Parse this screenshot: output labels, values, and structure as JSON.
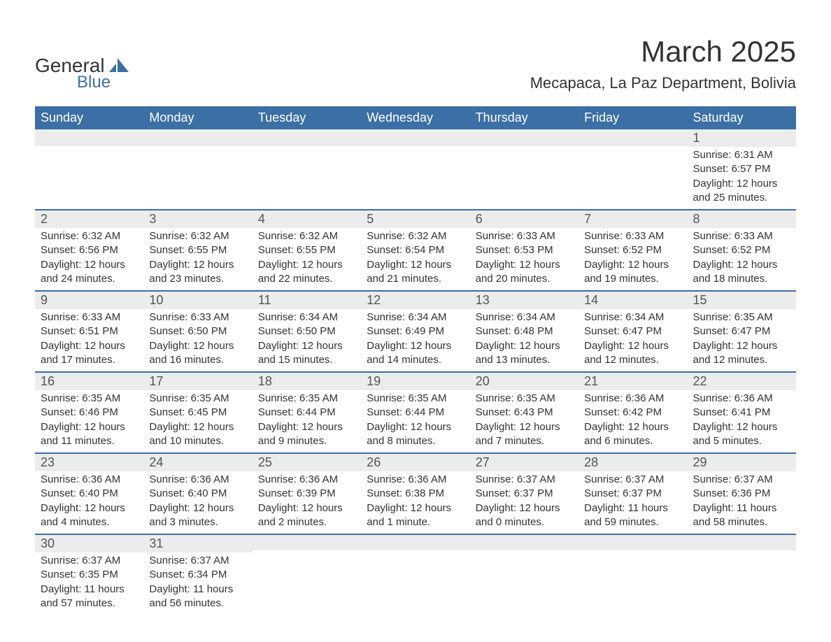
{
  "brand": {
    "line1": "General",
    "line2": "Blue"
  },
  "title": "March 2025",
  "location": "Mecapaca, La Paz Department, Bolivia",
  "colors": {
    "header_bg": "#3b6fa5",
    "header_fg": "#ffffff",
    "daynum_bg": "#ececec",
    "row_border": "#3b6fa5",
    "text": "#333333",
    "background": "#ffffff"
  },
  "fonts": {
    "title_pt": 42,
    "location_pt": 22,
    "dayheader_pt": 18,
    "body_pt": 15
  },
  "calendar": {
    "type": "calendar-table",
    "start_weekday": "Sunday",
    "day_headers": [
      "Sunday",
      "Monday",
      "Tuesday",
      "Wednesday",
      "Thursday",
      "Friday",
      "Saturday"
    ],
    "weeks": [
      [
        null,
        null,
        null,
        null,
        null,
        null,
        {
          "n": "1",
          "sunrise": "Sunrise: 6:31 AM",
          "sunset": "Sunset: 6:57 PM",
          "daylight": "Daylight: 12 hours and 25 minutes."
        }
      ],
      [
        {
          "n": "2",
          "sunrise": "Sunrise: 6:32 AM",
          "sunset": "Sunset: 6:56 PM",
          "daylight": "Daylight: 12 hours and 24 minutes."
        },
        {
          "n": "3",
          "sunrise": "Sunrise: 6:32 AM",
          "sunset": "Sunset: 6:55 PM",
          "daylight": "Daylight: 12 hours and 23 minutes."
        },
        {
          "n": "4",
          "sunrise": "Sunrise: 6:32 AM",
          "sunset": "Sunset: 6:55 PM",
          "daylight": "Daylight: 12 hours and 22 minutes."
        },
        {
          "n": "5",
          "sunrise": "Sunrise: 6:32 AM",
          "sunset": "Sunset: 6:54 PM",
          "daylight": "Daylight: 12 hours and 21 minutes."
        },
        {
          "n": "6",
          "sunrise": "Sunrise: 6:33 AM",
          "sunset": "Sunset: 6:53 PM",
          "daylight": "Daylight: 12 hours and 20 minutes."
        },
        {
          "n": "7",
          "sunrise": "Sunrise: 6:33 AM",
          "sunset": "Sunset: 6:52 PM",
          "daylight": "Daylight: 12 hours and 19 minutes."
        },
        {
          "n": "8",
          "sunrise": "Sunrise: 6:33 AM",
          "sunset": "Sunset: 6:52 PM",
          "daylight": "Daylight: 12 hours and 18 minutes."
        }
      ],
      [
        {
          "n": "9",
          "sunrise": "Sunrise: 6:33 AM",
          "sunset": "Sunset: 6:51 PM",
          "daylight": "Daylight: 12 hours and 17 minutes."
        },
        {
          "n": "10",
          "sunrise": "Sunrise: 6:33 AM",
          "sunset": "Sunset: 6:50 PM",
          "daylight": "Daylight: 12 hours and 16 minutes."
        },
        {
          "n": "11",
          "sunrise": "Sunrise: 6:34 AM",
          "sunset": "Sunset: 6:50 PM",
          "daylight": "Daylight: 12 hours and 15 minutes."
        },
        {
          "n": "12",
          "sunrise": "Sunrise: 6:34 AM",
          "sunset": "Sunset: 6:49 PM",
          "daylight": "Daylight: 12 hours and 14 minutes."
        },
        {
          "n": "13",
          "sunrise": "Sunrise: 6:34 AM",
          "sunset": "Sunset: 6:48 PM",
          "daylight": "Daylight: 12 hours and 13 minutes."
        },
        {
          "n": "14",
          "sunrise": "Sunrise: 6:34 AM",
          "sunset": "Sunset: 6:47 PM",
          "daylight": "Daylight: 12 hours and 12 minutes."
        },
        {
          "n": "15",
          "sunrise": "Sunrise: 6:35 AM",
          "sunset": "Sunset: 6:47 PM",
          "daylight": "Daylight: 12 hours and 12 minutes."
        }
      ],
      [
        {
          "n": "16",
          "sunrise": "Sunrise: 6:35 AM",
          "sunset": "Sunset: 6:46 PM",
          "daylight": "Daylight: 12 hours and 11 minutes."
        },
        {
          "n": "17",
          "sunrise": "Sunrise: 6:35 AM",
          "sunset": "Sunset: 6:45 PM",
          "daylight": "Daylight: 12 hours and 10 minutes."
        },
        {
          "n": "18",
          "sunrise": "Sunrise: 6:35 AM",
          "sunset": "Sunset: 6:44 PM",
          "daylight": "Daylight: 12 hours and 9 minutes."
        },
        {
          "n": "19",
          "sunrise": "Sunrise: 6:35 AM",
          "sunset": "Sunset: 6:44 PM",
          "daylight": "Daylight: 12 hours and 8 minutes."
        },
        {
          "n": "20",
          "sunrise": "Sunrise: 6:35 AM",
          "sunset": "Sunset: 6:43 PM",
          "daylight": "Daylight: 12 hours and 7 minutes."
        },
        {
          "n": "21",
          "sunrise": "Sunrise: 6:36 AM",
          "sunset": "Sunset: 6:42 PM",
          "daylight": "Daylight: 12 hours and 6 minutes."
        },
        {
          "n": "22",
          "sunrise": "Sunrise: 6:36 AM",
          "sunset": "Sunset: 6:41 PM",
          "daylight": "Daylight: 12 hours and 5 minutes."
        }
      ],
      [
        {
          "n": "23",
          "sunrise": "Sunrise: 6:36 AM",
          "sunset": "Sunset: 6:40 PM",
          "daylight": "Daylight: 12 hours and 4 minutes."
        },
        {
          "n": "24",
          "sunrise": "Sunrise: 6:36 AM",
          "sunset": "Sunset: 6:40 PM",
          "daylight": "Daylight: 12 hours and 3 minutes."
        },
        {
          "n": "25",
          "sunrise": "Sunrise: 6:36 AM",
          "sunset": "Sunset: 6:39 PM",
          "daylight": "Daylight: 12 hours and 2 minutes."
        },
        {
          "n": "26",
          "sunrise": "Sunrise: 6:36 AM",
          "sunset": "Sunset: 6:38 PM",
          "daylight": "Daylight: 12 hours and 1 minute."
        },
        {
          "n": "27",
          "sunrise": "Sunrise: 6:37 AM",
          "sunset": "Sunset: 6:37 PM",
          "daylight": "Daylight: 12 hours and 0 minutes."
        },
        {
          "n": "28",
          "sunrise": "Sunrise: 6:37 AM",
          "sunset": "Sunset: 6:37 PM",
          "daylight": "Daylight: 11 hours and 59 minutes."
        },
        {
          "n": "29",
          "sunrise": "Sunrise: 6:37 AM",
          "sunset": "Sunset: 6:36 PM",
          "daylight": "Daylight: 11 hours and 58 minutes."
        }
      ],
      [
        {
          "n": "30",
          "sunrise": "Sunrise: 6:37 AM",
          "sunset": "Sunset: 6:35 PM",
          "daylight": "Daylight: 11 hours and 57 minutes."
        },
        {
          "n": "31",
          "sunrise": "Sunrise: 6:37 AM",
          "sunset": "Sunset: 6:34 PM",
          "daylight": "Daylight: 11 hours and 56 minutes."
        },
        null,
        null,
        null,
        null,
        null
      ]
    ]
  }
}
